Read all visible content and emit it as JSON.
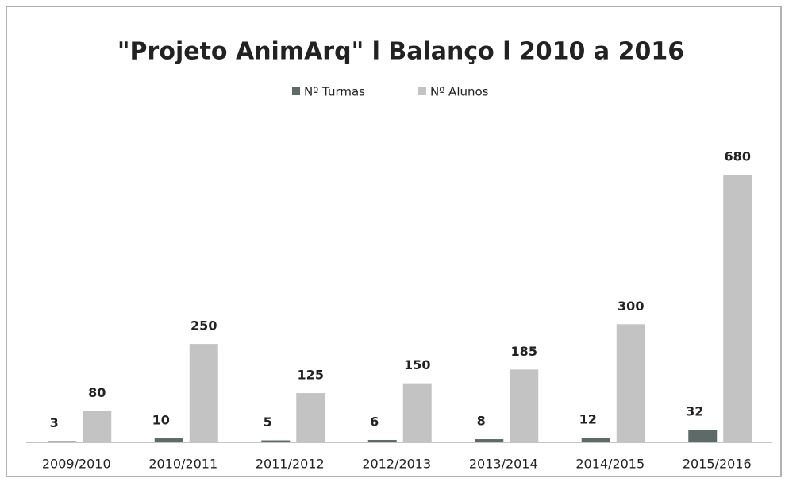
{
  "chart_data": {
    "type": "bar",
    "title": "\"Projeto AnimArq\" l Balanço l 2010 a 2016",
    "categories": [
      "2009/2010",
      "2010/2011",
      "2011/2012",
      "2012/2013",
      "2013/2014",
      "2014/2015",
      "2015/2016"
    ],
    "series": [
      {
        "name": "Nº Turmas",
        "color": "#5c6b67",
        "values": [
          3,
          10,
          5,
          6,
          8,
          12,
          32
        ]
      },
      {
        "name": "Nº Alunos",
        "color": "#c3c3c3",
        "values": [
          80,
          250,
          125,
          150,
          185,
          300,
          680
        ]
      }
    ]
  }
}
